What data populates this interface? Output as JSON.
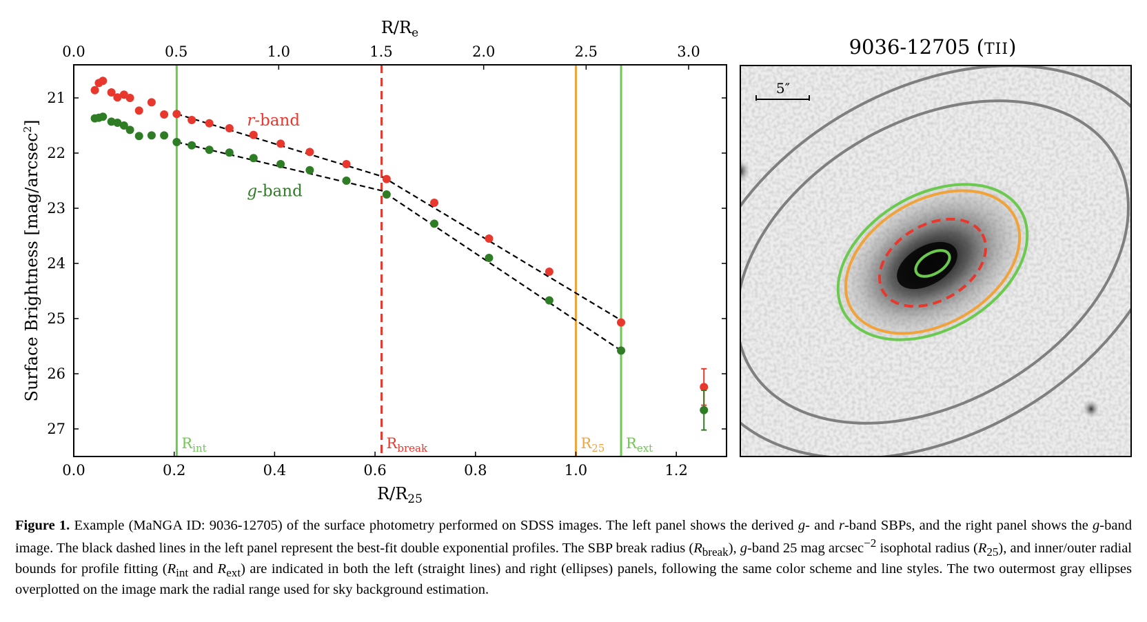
{
  "left_panel": {
    "chart_data": {
      "type": "scatter",
      "xlabel": "R/R25",
      "top_xlabel": "R/Re",
      "ylabel": "Surface Brightness [mag/arcsec2]",
      "xlim": [
        0.0,
        1.3
      ],
      "ylim": [
        27.5,
        20.4
      ],
      "y_inverted": true,
      "x_ticks": [
        "0.0",
        "0.2",
        "0.4",
        "0.6",
        "0.8",
        "1.0",
        "1.2"
      ],
      "y_ticks": [
        "21",
        "22",
        "23",
        "24",
        "25",
        "26",
        "27"
      ],
      "top_x_ticks": [
        "0.0",
        "0.5",
        "1.0",
        "1.5",
        "2.0",
        "2.5",
        "3.0"
      ],
      "top_axis_scale_Re_per_R25": 2.45,
      "series": [
        {
          "name": "r-band",
          "color": "#e8372c",
          "x": [
            0.042,
            0.05,
            0.058,
            0.075,
            0.087,
            0.1,
            0.112,
            0.13,
            0.155,
            0.18,
            0.205,
            0.235,
            0.27,
            0.31,
            0.358,
            0.412,
            0.47,
            0.543,
            0.623,
            0.718,
            0.827,
            0.947,
            1.09
          ],
          "y": [
            20.86,
            20.73,
            20.69,
            20.9,
            20.99,
            20.94,
            21.0,
            21.23,
            21.08,
            21.3,
            21.29,
            21.4,
            21.46,
            21.55,
            21.67,
            21.83,
            21.98,
            22.2,
            22.47,
            22.9,
            23.55,
            24.15,
            25.07
          ]
        },
        {
          "name": "g-band",
          "color": "#2e7d24",
          "x": [
            0.042,
            0.05,
            0.058,
            0.075,
            0.087,
            0.1,
            0.112,
            0.13,
            0.155,
            0.18,
            0.205,
            0.235,
            0.27,
            0.31,
            0.358,
            0.412,
            0.47,
            0.543,
            0.623,
            0.718,
            0.827,
            0.947,
            1.09
          ],
          "y": [
            21.37,
            21.36,
            21.34,
            21.43,
            21.45,
            21.5,
            21.58,
            21.69,
            21.68,
            21.68,
            21.8,
            21.86,
            21.94,
            21.99,
            22.09,
            22.2,
            22.31,
            22.5,
            22.75,
            23.28,
            23.9,
            24.67,
            25.58
          ]
        }
      ],
      "error_points": [
        {
          "series": "r-band",
          "x": 1.255,
          "y": 26.24,
          "err": 0.33
        },
        {
          "series": "g-band",
          "x": 1.255,
          "y": 26.66,
          "err": 0.36
        }
      ],
      "fit_lines": [
        {
          "series": "r-band",
          "x": [
            0.205,
            0.613,
            1.09
          ],
          "y": [
            21.29,
            22.42,
            25.03
          ]
        },
        {
          "series": "g-band",
          "x": [
            0.205,
            0.613,
            1.09
          ],
          "y": [
            21.8,
            22.68,
            25.58
          ]
        }
      ],
      "vlines": [
        {
          "label": "R",
          "subscript": "int",
          "x": 0.205,
          "color": "#6cc94f",
          "dashed": false
        },
        {
          "label": "R",
          "subscript": "break",
          "x": 0.613,
          "color": "#e8372c",
          "dashed": true
        },
        {
          "label": "R",
          "subscript": "25",
          "x": 1.0,
          "color": "#f0a33a",
          "dashed": false
        },
        {
          "label": "R",
          "subscript": "ext",
          "x": 1.09,
          "color": "#6cc94f",
          "dashed": false
        }
      ],
      "annotations": [
        {
          "text_italic": "r",
          "text": "-band",
          "color": "#e8372c"
        },
        {
          "text_italic": "g",
          "text": "-band",
          "color": "#2e7d24"
        }
      ],
      "grid": false
    }
  },
  "right_panel": {
    "title": "9036-12705 (TII)",
    "title_main": "9036-12705 (",
    "title_type": "TII",
    "title_close": ")",
    "scale_bar_label": "5″",
    "ellipse_colors": {
      "sky": "#7f7f7f",
      "ext": "#6cc94f",
      "r25": "#f0a33a",
      "break": "#e8372c",
      "int": "#6cc94f"
    }
  },
  "caption": {
    "label": "Figure 1.",
    "t1": " Example (MaNGA ID: 9036-12705) of the surface photometry performed on SDSS images. The left panel shows the derived ",
    "g1": "g",
    "t2": "- and ",
    "r1": "r",
    "t3": "-band SBPs, and the right panel shows the ",
    "g2": "g",
    "t4": "-band image. The black dashed lines in the left panel represent the best-fit double exponential profiles. The SBP break radius (",
    "rbreak_main": "R",
    "rbreak_sub": "break",
    "t5": "), ",
    "g3": "g",
    "t6": "-band 25 mag arcsec",
    "exp": "−2",
    "t7": " isophotal radius (",
    "r25_main": "R",
    "r25_sub": "25",
    "t8": "), and inner/outer radial bounds for profile fitting (",
    "rint_main": "R",
    "rint_sub": "int",
    "t9": " and ",
    "rext_main": "R",
    "rext_sub": "ext",
    "t10": ") are indicated in both the left (straight lines) and right (ellipses) panels, following the same color scheme and line styles. The two outermost gray ellipses overplotted on the image mark the radial range used for sky background estimation."
  }
}
